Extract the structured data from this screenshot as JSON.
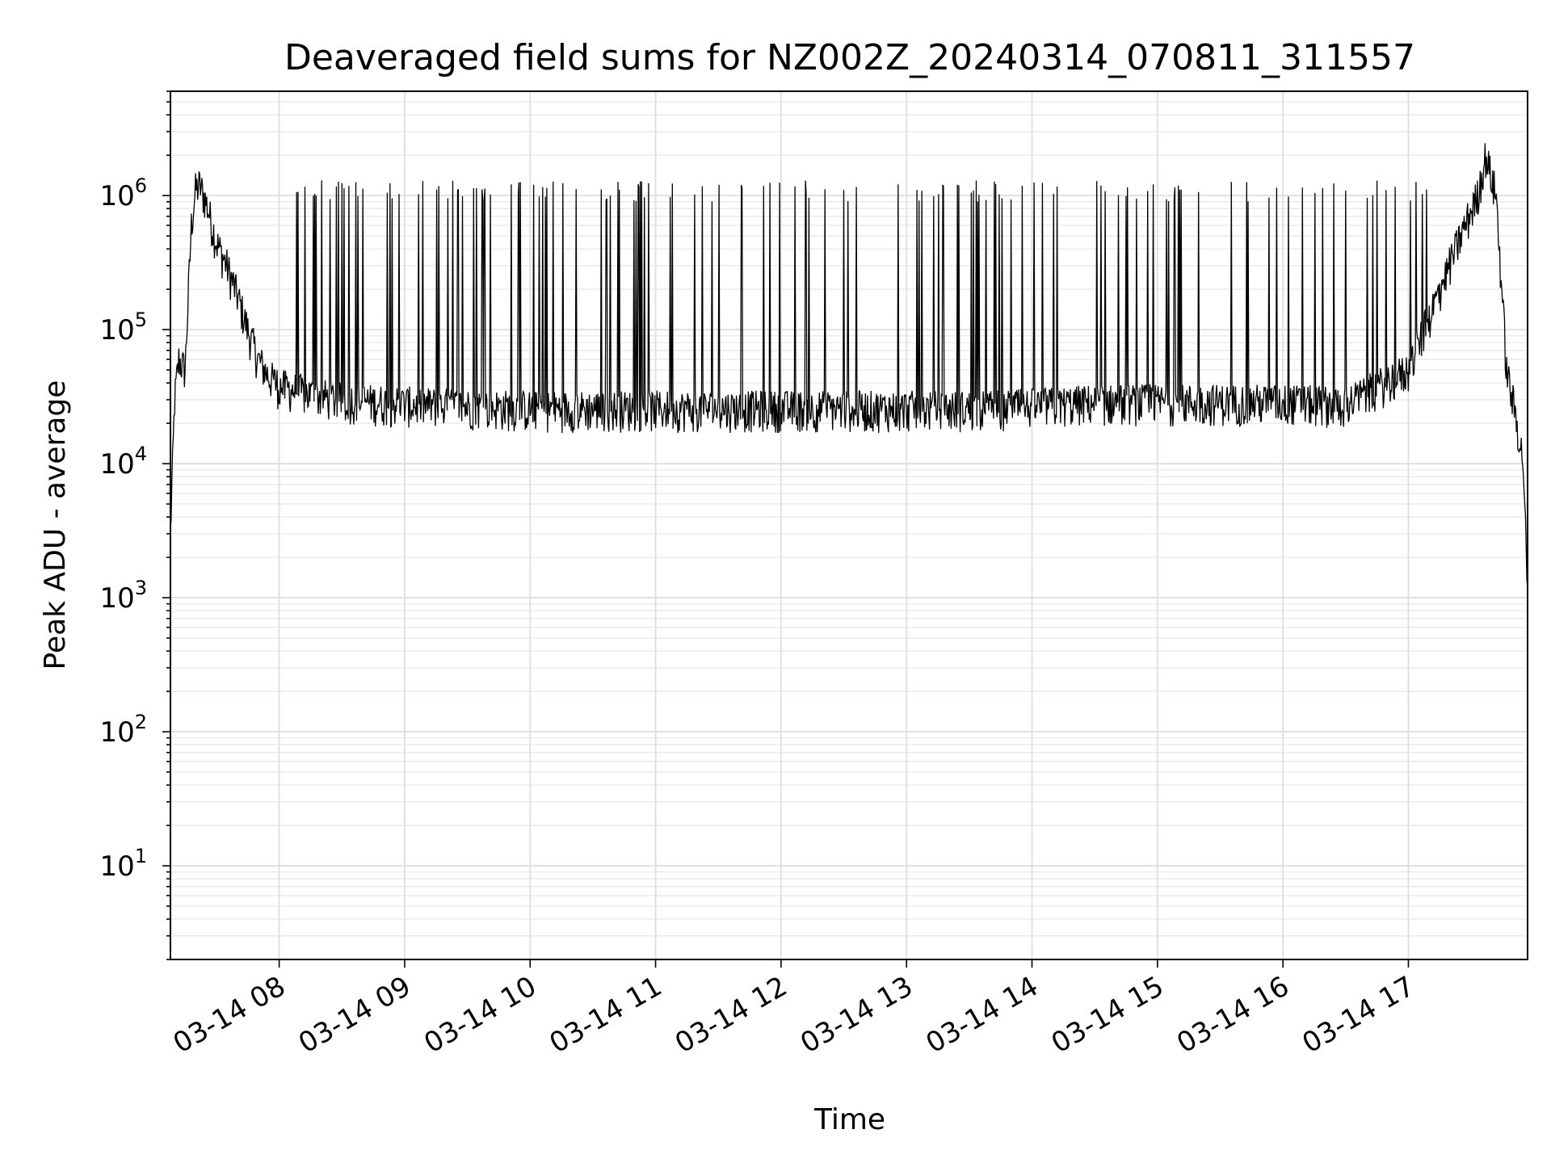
{
  "chart_data": {
    "type": "line",
    "title": "Deaveraged field sums for NZ002Z_20240314_070811_311557",
    "xlabel": "Time",
    "ylabel": "Peak ADU - average",
    "yscale": "log",
    "xlim": [
      "2024-03-14 07:08",
      "2024-03-14 17:57"
    ],
    "ylim": [
      2,
      6000000
    ],
    "grid": true,
    "line_color": "#000000",
    "x_ticks": [
      {
        "t": "2024-03-14 08:00",
        "label": "03-14 08"
      },
      {
        "t": "2024-03-14 09:00",
        "label": "03-14 09"
      },
      {
        "t": "2024-03-14 10:00",
        "label": "03-14 10"
      },
      {
        "t": "2024-03-14 11:00",
        "label": "03-14 11"
      },
      {
        "t": "2024-03-14 12:00",
        "label": "03-14 12"
      },
      {
        "t": "2024-03-14 13:00",
        "label": "03-14 13"
      },
      {
        "t": "2024-03-14 14:00",
        "label": "03-14 14"
      },
      {
        "t": "2024-03-14 15:00",
        "label": "03-14 15"
      },
      {
        "t": "2024-03-14 16:00",
        "label": "03-14 16"
      },
      {
        "t": "2024-03-14 17:00",
        "label": "03-14 17"
      }
    ],
    "y_ticks": [
      {
        "value": 10,
        "base": "10",
        "exp": "1"
      },
      {
        "value": 100,
        "base": "10",
        "exp": "2"
      },
      {
        "value": 1000,
        "base": "10",
        "exp": "3"
      },
      {
        "value": 10000,
        "base": "10",
        "exp": "4"
      },
      {
        "value": 100000,
        "base": "10",
        "exp": "5"
      },
      {
        "value": 1000000,
        "base": "10",
        "exp": "6"
      }
    ],
    "series": [
      {
        "x": [
          "2024-03-14 07:08",
          "2024-03-14 07:10",
          "2024-03-14 07:12",
          "2024-03-14 07:15",
          "2024-03-14 07:18",
          "2024-03-14 07:20",
          "2024-03-14 07:22",
          "2024-03-14 07:25",
          "2024-03-14 07:28",
          "2024-03-14 07:30",
          "2024-03-14 07:35",
          "2024-03-14 07:40",
          "2024-03-14 07:45",
          "2024-03-14 07:50",
          "2024-03-14 07:55",
          "2024-03-14 08:00",
          "2024-03-14 08:15",
          "2024-03-14 08:30",
          "2024-03-14 09:00",
          "2024-03-14 09:30",
          "2024-03-14 10:00",
          "2024-03-14 10:30",
          "2024-03-14 11:00",
          "2024-03-14 11:30",
          "2024-03-14 12:00",
          "2024-03-14 12:30",
          "2024-03-14 13:00",
          "2024-03-14 13:30",
          "2024-03-14 14:00",
          "2024-03-14 14:30",
          "2024-03-14 15:00",
          "2024-03-14 15:30",
          "2024-03-14 16:00",
          "2024-03-14 16:30",
          "2024-03-14 17:00",
          "2024-03-14 17:15",
          "2024-03-14 17:25",
          "2024-03-14 17:33",
          "2024-03-14 17:37",
          "2024-03-14 17:42",
          "2024-03-14 17:47",
          "2024-03-14 17:52",
          "2024-03-14 17:55",
          "2024-03-14 17:57"
        ],
        "y": [
          3000,
          30000,
          60000,
          50000,
          600000,
          1100000,
          1200000,
          900000,
          600000,
          450000,
          300000,
          180000,
          100000,
          60000,
          45000,
          38000,
          33000,
          30000,
          28000,
          27000,
          26000,
          26000,
          26000,
          26000,
          26000,
          26000,
          26000,
          26000,
          27000,
          29000,
          29000,
          29000,
          29000,
          28000,
          50000,
          200000,
          500000,
          1000000,
          2000000,
          1000000,
          50000,
          20000,
          10000,
          1000
        ]
      }
    ],
    "spikes": {
      "x_start": "2024-03-14 07:58",
      "x_end": "2024-03-14 17:15",
      "top_range": [
        900000,
        1300000
      ],
      "step_minutes": 2
    }
  }
}
